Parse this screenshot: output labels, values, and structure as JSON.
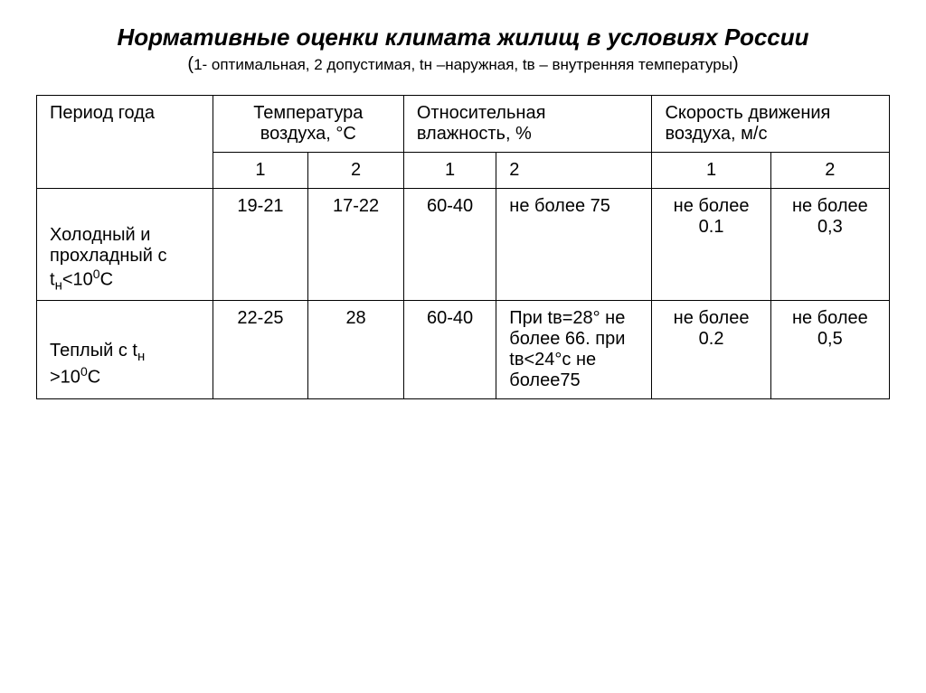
{
  "title": "Нормативные оценки климата жилищ в условиях России",
  "subtitle_prefix": "(",
  "subtitle_small": "1- оптимальная, 2 допустимая, tн –наружная, tв – внутренняя температуры",
  "subtitle_suffix": ")",
  "columns": {
    "period": "Период года",
    "temp": "Температура воздуха, °С",
    "humidity": "Относительная влажность, %",
    "airspeed": "Скорость движения воздуха, м/с",
    "sub1": "1",
    "sub2": "2"
  },
  "rows": [
    {
      "period_html": "Холодный и прохладный с t<sub>н</sub>&lt;10<sup>0</sup>С",
      "temp1": "19-21",
      "temp2": "17-22",
      "hum1": "60-40",
      "hum2": "не более 75",
      "air1": "не более 0.1",
      "air2": "не более 0,3"
    },
    {
      "period_html": "Теплый с t<sub>н</sub> &gt;10<sup>0</sup>С",
      "temp1": "22-25",
      "temp2": "28",
      "hum1": "60-40",
      "hum2": "При tв=28° не более 66. при tв<24°с не более75",
      "air1": "не более 0.2",
      "air2": "не более 0,5"
    }
  ],
  "style": {
    "background_color": "#ffffff",
    "text_color": "#000000",
    "border_color": "#000000",
    "title_fontsize": 26,
    "body_fontsize": 20,
    "font_family": "Arial"
  }
}
